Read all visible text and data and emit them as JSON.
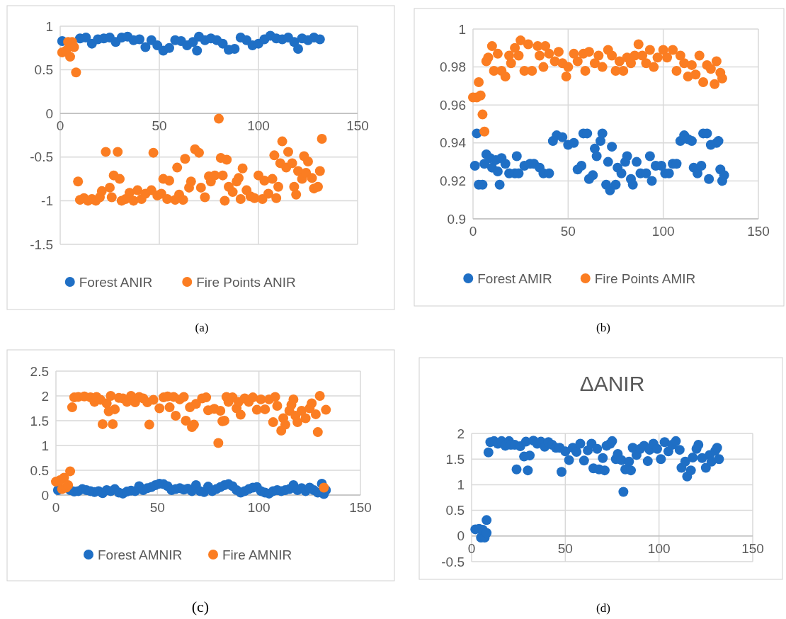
{
  "chart_data": [
    {
      "type": "scatter",
      "annotations": [
        "(a)"
      ],
      "xlim": [
        0,
        150
      ],
      "xticks": [
        0,
        50,
        100,
        150
      ],
      "ylim": [
        -1.5,
        1
      ],
      "yticks": [
        -1.5,
        -1,
        -0.5,
        0,
        0.5,
        1
      ],
      "grid": true,
      "legend": "bottom",
      "marker": "circle",
      "series": [
        {
          "name": "Forest ANIR",
          "color": "#1f6fc5",
          "x": [
            1,
            10,
            13,
            16,
            19,
            22,
            25,
            28,
            31,
            34,
            37,
            40,
            43,
            46,
            49,
            52,
            55,
            58,
            61,
            64,
            67,
            69,
            70,
            73,
            76,
            79,
            82,
            85,
            88,
            91,
            94,
            97,
            100,
            103,
            106,
            109,
            112,
            115,
            118,
            120,
            122,
            125,
            128,
            131
          ],
          "values": [
            0.83,
            0.86,
            0.87,
            0.8,
            0.85,
            0.86,
            0.87,
            0.82,
            0.87,
            0.88,
            0.84,
            0.85,
            0.76,
            0.84,
            0.78,
            0.72,
            0.75,
            0.84,
            0.83,
            0.78,
            0.82,
            0.72,
            0.88,
            0.84,
            0.86,
            0.84,
            0.8,
            0.73,
            0.74,
            0.87,
            0.84,
            0.78,
            0.8,
            0.85,
            0.89,
            0.86,
            0.85,
            0.87,
            0.82,
            0.74,
            0.86,
            0.84,
            0.87,
            0.85
          ]
        },
        {
          "name": "Fire Points ANIR",
          "color": "#fb7d22",
          "x": [
            1,
            3,
            4,
            5,
            6,
            7,
            8,
            9,
            10,
            12,
            14,
            16,
            18,
            20,
            21,
            23,
            25,
            26,
            27,
            29,
            30,
            31,
            33,
            35,
            37,
            39,
            41,
            43,
            46,
            47,
            49,
            51,
            52,
            54,
            55,
            58,
            59,
            60,
            62,
            63,
            65,
            66,
            68,
            70,
            71,
            73,
            75,
            76,
            78,
            80,
            81,
            82,
            83,
            84,
            85,
            87,
            89,
            90,
            91,
            92,
            94,
            96,
            98,
            100,
            102,
            103,
            105,
            107,
            108,
            109,
            110,
            111,
            112,
            114,
            115,
            117,
            118,
            119,
            120,
            122,
            123,
            124,
            125,
            127,
            128,
            130,
            131,
            132
          ],
          "values": [
            0.7,
            0.72,
            0.82,
            0.65,
            0.82,
            0.76,
            0.47,
            -0.78,
            -0.99,
            -0.97,
            -1,
            -0.98,
            -1,
            -0.96,
            -0.89,
            -0.44,
            -0.85,
            -0.96,
            -0.71,
            -0.44,
            -0.75,
            -1,
            -0.98,
            -0.91,
            -1,
            -0.88,
            -0.98,
            -0.92,
            -0.88,
            -0.45,
            -0.94,
            -0.92,
            -0.75,
            -0.98,
            -0.77,
            -0.99,
            -0.62,
            -0.93,
            -0.99,
            -0.52,
            -0.85,
            -0.78,
            -0.41,
            -0.45,
            -0.85,
            -0.96,
            -0.72,
            -0.78,
            -0.71,
            -0.06,
            -0.51,
            -0.71,
            -1,
            -0.53,
            -0.84,
            -0.9,
            -0.78,
            -0.74,
            -0.98,
            -0.63,
            -0.88,
            -0.95,
            -0.97,
            -0.71,
            -0.98,
            -0.77,
            -0.92,
            -0.75,
            -0.48,
            -0.97,
            -0.84,
            -0.57,
            -0.32,
            -0.62,
            -0.44,
            -0.57,
            -0.84,
            -0.93,
            -0.66,
            -0.75,
            -0.49,
            -0.68,
            -0.55,
            -0.74,
            -0.86,
            -0.84,
            -0.66,
            -0.29
          ]
        }
      ]
    },
    {
      "type": "scatter",
      "annotations": [
        "(b)"
      ],
      "xlim": [
        0,
        150
      ],
      "xticks": [
        0,
        50,
        100,
        150
      ],
      "ylim": [
        0.9,
        1
      ],
      "yticks": [
        0.9,
        0.92,
        0.94,
        0.96,
        0.98,
        1
      ],
      "grid": true,
      "legend": "bottom",
      "marker": "circle",
      "series": [
        {
          "name": "Forest AMIR",
          "color": "#1f6fc5",
          "x": [
            1,
            2,
            3,
            5,
            6,
            7,
            9,
            10,
            12,
            13,
            14,
            15,
            17,
            19,
            22,
            23,
            24,
            27,
            30,
            32,
            35,
            37,
            40,
            42,
            44,
            47,
            50,
            53,
            55,
            57,
            58,
            60,
            61,
            63,
            64,
            65,
            67,
            68,
            70,
            71,
            72,
            73,
            75,
            76,
            78,
            80,
            81,
            83,
            84,
            86,
            88,
            91,
            93,
            94,
            96,
            99,
            101,
            103,
            105,
            107,
            109,
            111,
            113,
            115,
            116,
            118,
            120,
            121,
            123,
            124,
            125,
            128,
            129,
            130,
            131,
            132
          ],
          "values": [
            0.928,
            0.945,
            0.918,
            0.918,
            0.929,
            0.934,
            0.932,
            0.927,
            0.931,
            0.925,
            0.918,
            0.932,
            0.929,
            0.924,
            0.924,
            0.933,
            0.924,
            0.928,
            0.929,
            0.929,
            0.927,
            0.924,
            0.924,
            0.941,
            0.944,
            0.943,
            0.939,
            0.94,
            0.926,
            0.928,
            0.945,
            0.945,
            0.921,
            0.923,
            0.937,
            0.933,
            0.941,
            0.945,
            0.918,
            0.93,
            0.915,
            0.938,
            0.918,
            0.927,
            0.924,
            0.93,
            0.933,
            0.921,
            0.918,
            0.93,
            0.924,
            0.924,
            0.933,
            0.92,
            0.928,
            0.928,
            0.924,
            0.924,
            0.929,
            0.929,
            0.941,
            0.944,
            0.942,
            0.941,
            0.927,
            0.924,
            0.928,
            0.945,
            0.945,
            0.921,
            0.939,
            0.94,
            0.941,
            0.926,
            0.92,
            0.923
          ]
        },
        {
          "name": "Fire Points AMIR",
          "color": "#fb7d22",
          "x": [
            0,
            2,
            3,
            4,
            5,
            6,
            7,
            8,
            10,
            11,
            13,
            15,
            17,
            19,
            20,
            22,
            24,
            25,
            27,
            29,
            31,
            34,
            35,
            37,
            38,
            40,
            43,
            45,
            47,
            49,
            50,
            53,
            55,
            58,
            59,
            61,
            64,
            66,
            68,
            71,
            73,
            75,
            77,
            79,
            81,
            83,
            85,
            87,
            89,
            91,
            93,
            95,
            97,
            100,
            102,
            105,
            107,
            109,
            111,
            113,
            115,
            117,
            119,
            121,
            123,
            125,
            127,
            128,
            130,
            131
          ],
          "values": [
            0.964,
            0.964,
            0.972,
            0.965,
            0.955,
            0.946,
            0.983,
            0.985,
            0.991,
            0.978,
            0.987,
            0.978,
            0.975,
            0.986,
            0.982,
            0.99,
            0.986,
            0.994,
            0.978,
            0.992,
            0.978,
            0.991,
            0.986,
            0.98,
            0.991,
            0.987,
            0.983,
            0.988,
            0.982,
            0.975,
            0.98,
            0.987,
            0.983,
            0.987,
            0.978,
            0.988,
            0.982,
            0.986,
            0.98,
            0.989,
            0.986,
            0.978,
            0.983,
            0.978,
            0.985,
            0.982,
            0.986,
            0.992,
            0.986,
            0.982,
            0.989,
            0.98,
            0.985,
            0.989,
            0.985,
            0.989,
            0.978,
            0.986,
            0.982,
            0.975,
            0.981,
            0.976,
            0.986,
            0.972,
            0.981,
            0.979,
            0.971,
            0.983,
            0.977,
            0.974
          ]
        }
      ]
    },
    {
      "type": "scatter",
      "annotations": [
        "(c)"
      ],
      "xlim": [
        0,
        150
      ],
      "xticks": [
        0,
        50,
        100,
        150
      ],
      "ylim": [
        0,
        2.5
      ],
      "yticks": [
        0,
        0.5,
        1,
        1.5,
        2,
        2.5
      ],
      "grid": true,
      "legend": "bottom",
      "marker": "circle",
      "series": [
        {
          "name": "Forest AMNIR",
          "color": "#1f6fc5",
          "x": [
            1,
            7,
            9,
            11,
            13,
            15,
            17,
            19,
            21,
            23,
            25,
            27,
            29,
            31,
            33,
            35,
            37,
            39,
            41,
            43,
            45,
            47,
            49,
            51,
            53,
            55,
            57,
            59,
            61,
            63,
            65,
            67,
            69,
            71,
            73,
            75,
            77,
            79,
            81,
            83,
            85,
            87,
            89,
            91,
            93,
            95,
            97,
            99,
            101,
            103,
            105,
            107,
            109,
            111,
            113,
            115,
            117,
            119,
            121,
            123,
            125,
            127,
            129,
            131,
            132,
            133
          ],
          "values": [
            0.1,
            0.1,
            0.07,
            0.08,
            0.12,
            0.1,
            0.08,
            0.06,
            0.08,
            0.04,
            0.1,
            0.08,
            0.12,
            0.05,
            0.03,
            0.07,
            0.09,
            0.08,
            0.18,
            0.1,
            0.14,
            0.16,
            0.2,
            0.23,
            0.22,
            0.18,
            0.1,
            0.12,
            0.14,
            0.11,
            0.13,
            0.08,
            0.2,
            0.08,
            0.06,
            0.17,
            0.08,
            0.12,
            0.16,
            0.2,
            0.22,
            0.18,
            0.1,
            0.05,
            0.08,
            0.12,
            0.15,
            0.16,
            0.08,
            0.05,
            0.03,
            0.08,
            0.1,
            0.08,
            0.1,
            0.12,
            0.2,
            0.1,
            0.14,
            0.08,
            0.15,
            0.1,
            0.05,
            0.23,
            0.02,
            0.1
          ]
        },
        {
          "name": "Fire AMNIR",
          "color": "#fb7d22",
          "x": [
            0,
            2,
            3,
            4,
            5,
            6,
            7,
            8,
            9,
            11,
            14,
            17,
            19,
            20,
            22,
            23,
            25,
            26,
            27,
            28,
            29,
            31,
            33,
            35,
            37,
            39,
            41,
            43,
            45,
            46,
            48,
            51,
            53,
            55,
            56,
            58,
            59,
            61,
            63,
            64,
            66,
            67,
            68,
            69,
            72,
            74,
            75,
            78,
            80,
            81,
            82,
            83,
            84,
            85,
            87,
            89,
            90,
            91,
            93,
            95,
            97,
            99,
            101,
            103,
            105,
            107,
            108,
            109,
            111,
            112,
            113,
            115,
            116,
            117,
            118,
            119,
            121,
            123,
            125,
            126,
            128,
            129,
            130,
            132,
            133
          ],
          "values": [
            0.27,
            0.3,
            0.12,
            0.35,
            0.15,
            0.2,
            0.48,
            1.77,
            1.97,
            1.98,
            1.99,
            1.97,
            1.88,
            1.98,
            1.92,
            1.43,
            1.85,
            1.69,
            2,
            1.43,
            1.73,
            1.96,
            1.95,
            1.88,
            2,
            1.87,
            1.98,
            1.95,
            1.87,
            1.42,
            1.92,
            1.75,
            1.97,
            1.99,
            1.77,
            1.98,
            1.6,
            1.93,
            1.98,
            1.5,
            1.77,
            1.37,
            1.42,
            1.84,
            1.95,
            1.97,
            1.71,
            1.74,
            1.05,
            1.7,
            1.49,
            1.5,
            1.98,
            1.88,
            1.97,
            1.75,
            1.88,
            1.62,
            1.95,
            1.88,
            1.97,
            1.72,
            1.93,
            1.73,
            1.93,
            1.47,
            1.98,
            1.8,
            1.3,
            1.55,
            1.42,
            1.7,
            1.82,
            1.93,
            1.6,
            1.47,
            1.7,
            1.55,
            1.75,
            1.85,
            1.63,
            1.27,
            2,
            0.15,
            1.72
          ]
        }
      ]
    },
    {
      "type": "scatter",
      "title": "ΔANIR",
      "annotations": [
        "(d)"
      ],
      "xlim": [
        0,
        150
      ],
      "xticks": [
        0,
        50,
        100,
        150
      ],
      "ylim": [
        -0.5,
        2
      ],
      "yticks": [
        -0.5,
        0,
        0.5,
        1,
        1.5,
        2
      ],
      "grid": true,
      "marker": "circle",
      "series": [
        {
          "color": "#1f6fc5",
          "x": [
            2,
            4,
            5,
            6,
            7,
            8,
            8,
            9,
            10,
            12,
            14,
            16,
            18,
            20,
            21,
            23,
            24,
            26,
            28,
            29,
            30,
            31,
            33,
            35,
            37,
            39,
            41,
            43,
            45,
            47,
            48,
            50,
            52,
            54,
            56,
            58,
            60,
            62,
            64,
            65,
            67,
            68,
            70,
            71,
            72,
            74,
            75,
            77,
            78,
            80,
            81,
            82,
            84,
            85,
            86,
            88,
            90,
            92,
            94,
            95,
            97,
            99,
            101,
            103,
            105,
            107,
            109,
            111,
            112,
            114,
            115,
            117,
            118,
            120,
            121,
            123,
            125,
            127,
            128,
            130,
            131,
            132
          ],
          "values": [
            0.13,
            0.14,
            -0.03,
            0.12,
            -0.03,
            0.06,
            0.31,
            1.63,
            1.83,
            1.85,
            1.8,
            1.85,
            1.76,
            1.85,
            1.78,
            1.78,
            1.3,
            1.75,
            1.55,
            1.84,
            1.28,
            1.57,
            1.86,
            1.8,
            1.84,
            1.74,
            1.83,
            1.78,
            1.72,
            1.72,
            1.25,
            1.65,
            1.48,
            1.72,
            1.64,
            1.8,
            1.47,
            1.67,
            1.8,
            1.32,
            1.7,
            1.3,
            1.52,
            1.28,
            1.76,
            1.8,
            1.85,
            1.5,
            1.6,
            1.48,
            0.86,
            1.3,
            1.45,
            1.28,
            1.72,
            1.58,
            1.7,
            1.76,
            1.46,
            1.68,
            1.8,
            1.7,
            1.5,
            1.83,
            1.65,
            1.78,
            1.85,
            1.68,
            1.33,
            1.45,
            1.16,
            1.28,
            1.53,
            1.7,
            1.78,
            1.52,
            1.33,
            1.58,
            1.45,
            1.66,
            1.72,
            1.5
          ]
        }
      ]
    }
  ]
}
